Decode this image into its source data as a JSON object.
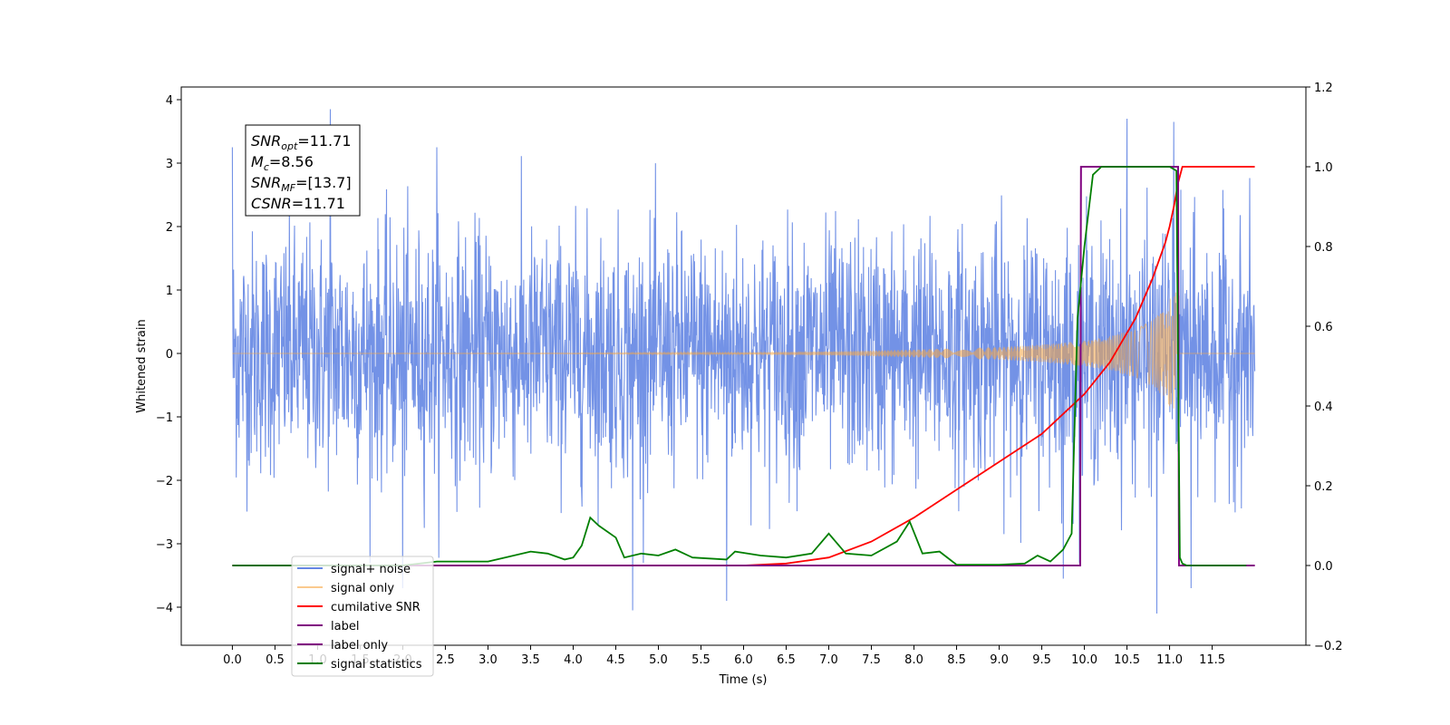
{
  "chart_data": {
    "type": "line",
    "xlabel": "Time (s)",
    "ylabel": "Whitened strain",
    "xlim": [
      -0.6,
      12.6
    ],
    "ylim": [
      -4.6,
      4.2
    ],
    "y2lim": [
      -0.2,
      1.2
    ],
    "x_ticks": [
      0.0,
      0.5,
      1.0,
      1.5,
      2.0,
      2.5,
      3.0,
      3.5,
      4.0,
      4.5,
      5.0,
      5.5,
      6.0,
      6.5,
      7.0,
      7.5,
      8.0,
      8.5,
      9.0,
      9.5,
      10.0,
      10.5,
      11.0,
      11.5
    ],
    "x_tick_labels": [
      "0.0",
      "0.5",
      "1.0",
      "1.5",
      "2.0",
      "2.5",
      "3.0",
      "3.5",
      "4.0",
      "4.5",
      "5.0",
      "5.5",
      "6.0",
      "6.5",
      "7.0",
      "7.5",
      "8.0",
      "8.5",
      "9.0",
      "9.5",
      "10.0",
      "10.5",
      "11.0",
      "11.5"
    ],
    "y_ticks": [
      4,
      3,
      2,
      1,
      0,
      -1,
      -2,
      -3,
      -4
    ],
    "y_tick_labels": [
      "4",
      "3",
      "2",
      "1",
      "0",
      "−1",
      "−2",
      "−3",
      "−4"
    ],
    "y2_ticks": [
      1.2,
      1.0,
      0.8,
      0.6,
      0.4,
      0.2,
      0.0,
      -0.2
    ],
    "y2_tick_labels": [
      "1.2",
      "1.0",
      "0.8",
      "0.6",
      "0.4",
      "0.2",
      "0.0",
      "−0.2"
    ],
    "grid": false,
    "legend_position": "lower-left",
    "annotation": {
      "snr_opt": "=11.71",
      "mc": "=8.56",
      "snr_mf": "=[13.7]",
      "csnr": "=11.71"
    },
    "series": [
      {
        "name": "signal+ noise",
        "axis": "left",
        "color": "#6486e3",
        "kind": "noise",
        "x_range": [
          0.0,
          12.0
        ],
        "sigma": 1.0,
        "peaks": [
          [
            0.0,
            3.25
          ],
          [
            1.15,
            3.85
          ],
          [
            2.4,
            3.25
          ],
          [
            2.0,
            -3.7
          ],
          [
            4.7,
            -4.05
          ],
          [
            5.8,
            -3.9
          ],
          [
            10.85,
            -4.1
          ],
          [
            11.25,
            -3.7
          ],
          [
            10.5,
            3.7
          ],
          [
            11.05,
            3.65
          ],
          [
            9.75,
            -3.55
          ]
        ]
      },
      {
        "name": "signal only",
        "axis": "left",
        "color": "#f9a742",
        "kind": "chirp_envelope",
        "x": [
          0.0,
          4.0,
          6.0,
          7.0,
          8.0,
          9.0,
          9.5,
          10.0,
          10.3,
          10.6,
          10.8,
          10.95,
          11.03,
          11.08,
          11.11,
          11.14,
          11.2,
          12.0
        ],
        "env": [
          0.0,
          0.005,
          0.015,
          0.03,
          0.06,
          0.1,
          0.14,
          0.2,
          0.27,
          0.38,
          0.52,
          0.72,
          0.92,
          1.0,
          0.55,
          0.1,
          0.02,
          0.02
        ]
      },
      {
        "name": "cumilative SNR",
        "axis": "right",
        "color": "#ff0000",
        "x": [
          0.0,
          6.0,
          6.5,
          7.0,
          7.5,
          8.0,
          8.5,
          9.0,
          9.5,
          10.0,
          10.3,
          10.6,
          10.8,
          10.95,
          11.0,
          11.05,
          11.1,
          11.15,
          12.0
        ],
        "values": [
          0.0,
          0.0,
          0.005,
          0.02,
          0.06,
          0.12,
          0.19,
          0.26,
          0.33,
          0.43,
          0.51,
          0.62,
          0.72,
          0.81,
          0.85,
          0.9,
          0.96,
          1.0,
          1.0
        ]
      },
      {
        "name": "label",
        "axis": "right",
        "color": "#800080",
        "x": [
          0.0,
          9.95,
          9.96,
          11.1,
          11.11,
          12.0
        ],
        "values": [
          0.0,
          0.0,
          1.0,
          1.0,
          0.0,
          0.0
        ]
      },
      {
        "name": "label only",
        "axis": "right",
        "color": "#800080",
        "x": [
          0.0,
          9.95,
          9.96,
          11.1,
          11.11,
          12.0
        ],
        "values": [
          0.0,
          0.0,
          1.0,
          1.0,
          0.0,
          0.0
        ]
      },
      {
        "name": "signal statistics",
        "axis": "right",
        "color": "#007f00",
        "x": [
          0.0,
          2.0,
          2.4,
          3.0,
          3.2,
          3.5,
          3.7,
          3.9,
          4.0,
          4.1,
          4.2,
          4.3,
          4.5,
          4.6,
          4.8,
          5.0,
          5.2,
          5.4,
          5.8,
          5.9,
          6.2,
          6.5,
          6.8,
          7.0,
          7.2,
          7.5,
          7.8,
          7.95,
          8.1,
          8.3,
          8.5,
          9.0,
          9.3,
          9.45,
          9.6,
          9.75,
          9.85,
          9.92,
          10.0,
          10.1,
          10.2,
          10.3,
          11.0,
          11.08,
          11.12,
          11.15,
          11.2,
          11.3,
          11.9
        ],
        "values": [
          0.0,
          0.0,
          0.01,
          0.01,
          0.02,
          0.035,
          0.03,
          0.015,
          0.02,
          0.05,
          0.12,
          0.1,
          0.07,
          0.02,
          0.03,
          0.025,
          0.04,
          0.02,
          0.015,
          0.035,
          0.025,
          0.02,
          0.03,
          0.08,
          0.03,
          0.025,
          0.06,
          0.11,
          0.03,
          0.035,
          0.002,
          0.002,
          0.005,
          0.025,
          0.01,
          0.04,
          0.08,
          0.62,
          0.8,
          0.98,
          1.0,
          1.0,
          1.0,
          0.99,
          0.02,
          0.005,
          0.0,
          0.0,
          0.0
        ]
      }
    ]
  }
}
